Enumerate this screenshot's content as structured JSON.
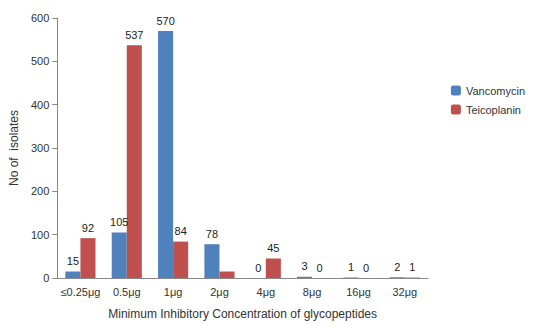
{
  "chart_data": {
    "type": "bar",
    "x_label": "Minimum Inhibitory Concentration of glycopeptides",
    "y_label": "No of  isolates",
    "categories": [
      "≤0.25μg",
      "0.5μg",
      "1μg",
      "2μg",
      "4μg",
      "8μg",
      "16μg",
      "32μg"
    ],
    "series": [
      {
        "name": "Vancomycin",
        "color": "#4f81bd",
        "values": [
          15,
          105,
          570,
          78,
          0,
          3,
          1,
          2
        ],
        "value_labels": [
          "15",
          "105",
          "570",
          "78",
          "0",
          "3",
          "1",
          "2"
        ]
      },
      {
        "name": "Teicoplanin",
        "color": "#c0504d",
        "values": [
          92,
          537,
          84,
          15,
          45,
          0,
          0,
          1
        ],
        "value_labels": [
          "92",
          "537",
          "84",
          null,
          "45",
          "0",
          "0",
          "1"
        ]
      }
    ],
    "ylim": [
      0,
      600
    ],
    "yticks": [
      0,
      100,
      200,
      300,
      400,
      500,
      600
    ],
    "grid": false,
    "legend": "right",
    "data_labels": true
  }
}
